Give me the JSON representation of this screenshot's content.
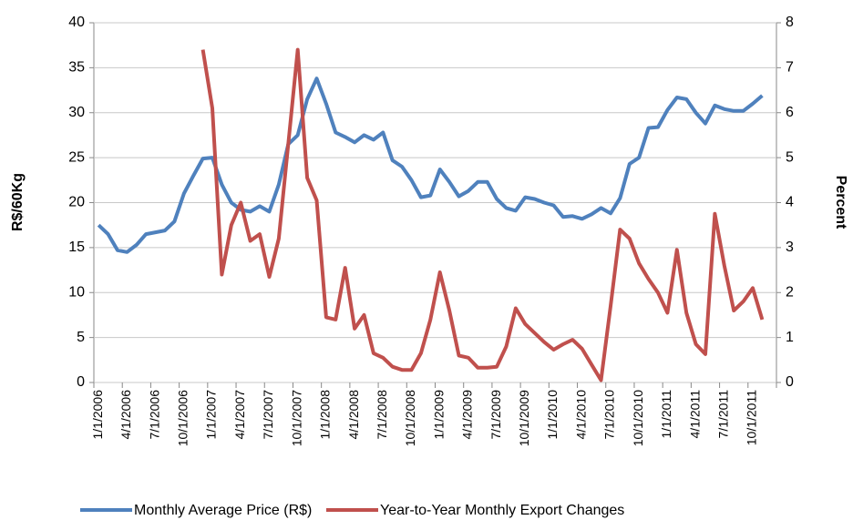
{
  "chart_data": {
    "type": "line",
    "categories": [
      "1/1/2006",
      null,
      null,
      "4/1/2006",
      null,
      null,
      "7/1/2006",
      null,
      null,
      "10/1/2006",
      null,
      null,
      "1/1/2007",
      null,
      null,
      "4/1/2007",
      null,
      null,
      "7/1/2007",
      null,
      null,
      "10/1/2007",
      null,
      null,
      "1/1/2008",
      null,
      null,
      "4/1/2008",
      null,
      null,
      "7/1/2008",
      null,
      null,
      "10/1/2008",
      null,
      null,
      "1/1/2009",
      null,
      null,
      "4/1/2009",
      null,
      null,
      "7/1/2009",
      null,
      null,
      "10/1/2009",
      null,
      null,
      "1/1/2010",
      null,
      null,
      "4/1/2010",
      null,
      null,
      "7/1/2010",
      null,
      null,
      "10/1/2010",
      null,
      null,
      "1/1/2011",
      null,
      null,
      "4/1/2011",
      null,
      null,
      "7/1/2011",
      null,
      null,
      "10/1/2011",
      null,
      null
    ],
    "series": [
      {
        "name": "Monthly Average Price (R$)",
        "color": "#4f81bd",
        "values": [
          17.5,
          16.5,
          14.7,
          14.5,
          15.3,
          16.5,
          16.7,
          16.9,
          17.9,
          21,
          23,
          24.9,
          25,
          22,
          20,
          19.2,
          19,
          19.6,
          19,
          22,
          26.5,
          27.5,
          31.5,
          33.8,
          31,
          27.8,
          27.3,
          26.7,
          27.5,
          27,
          27.8,
          24.7,
          24,
          22.5,
          20.6,
          20.8,
          23.7,
          22.3,
          20.7,
          21.3,
          22.3,
          22.3,
          20.4,
          19.4,
          19.1,
          20.6,
          20.4,
          20,
          19.7,
          18.4,
          18.5,
          18.2,
          18.7,
          19.4,
          18.8,
          20.5,
          24.3,
          25,
          28.3,
          28.4,
          30.3,
          31.7,
          31.5,
          30,
          28.8,
          30.8,
          30.4,
          30.2,
          30.2,
          31,
          31.9,
          null
        ]
      },
      {
        "name": "Year-to-Year Monthly Export Changes",
        "color": "#c0504d",
        "axis": "y2",
        "values": [
          null,
          null,
          null,
          null,
          null,
          null,
          null,
          null,
          null,
          null,
          null,
          7.4,
          6.1,
          2.4,
          3.5,
          4,
          3.15,
          3.3,
          2.35,
          3.2,
          5.3,
          7.4,
          4.55,
          4.05,
          1.45,
          1.4,
          2.55,
          1.2,
          1.5,
          0.65,
          0.55,
          0.35,
          0.28,
          0.28,
          0.65,
          1.4,
          2.45,
          1.6,
          0.6,
          0.55,
          0.33,
          0.33,
          0.35,
          0.8,
          1.65,
          1.3,
          1.1,
          0.9,
          0.73,
          0.85,
          0.95,
          0.75,
          0.4,
          0.05,
          1.7,
          3.4,
          3.2,
          2.65,
          2.3,
          2,
          1.55,
          2.95,
          1.55,
          0.85,
          0.63,
          3.75,
          2.6,
          1.6,
          1.8,
          2.1,
          1.4,
          null
        ]
      }
    ],
    "y_label": "R$/60Kg",
    "y2_label": "Percent",
    "ylim": [
      0,
      40
    ],
    "yticks": [
      0,
      5,
      10,
      15,
      20,
      25,
      30,
      35,
      40
    ],
    "y2lim": [
      0,
      8
    ],
    "y2ticks": [
      0,
      1,
      2,
      3,
      4,
      5,
      6,
      7,
      8
    ],
    "grid": true,
    "legend": "bottom"
  }
}
